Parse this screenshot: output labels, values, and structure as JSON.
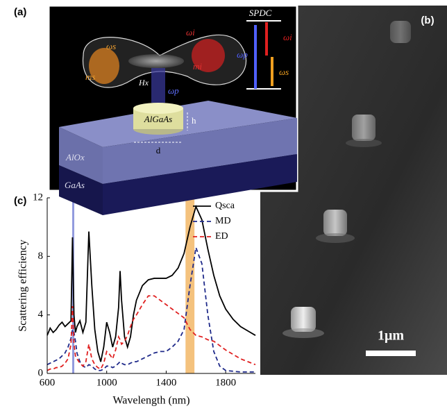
{
  "panels": {
    "a": {
      "label": "(a)",
      "process": "SPDC",
      "omega_s": "ωs",
      "omega_i": "ωi",
      "omega_p": "ωp",
      "m_s": "ms",
      "m_i": "mi",
      "field": "Hx",
      "pillar": "AlGaAs",
      "height": "h",
      "diameter": "d",
      "layer_top": "AlOx",
      "layer_bottom": "GaAs",
      "level_p": "ωp",
      "level_i": "ωi",
      "level_s": "ωs"
    },
    "b": {
      "label": "(b)",
      "scale_bar": "1μm"
    }
  },
  "chart_data": {
    "type": "line",
    "panel_label": "(c)",
    "xlabel": "Wavelength (nm)",
    "ylabel": "Scattering efficiency",
    "x": [
      600,
      620,
      640,
      660,
      680,
      700,
      720,
      740,
      760,
      770,
      780,
      790,
      800,
      820,
      840,
      860,
      880,
      900,
      920,
      940,
      960,
      980,
      1000,
      1020,
      1040,
      1060,
      1080,
      1090,
      1100,
      1120,
      1140,
      1160,
      1180,
      1200,
      1240,
      1280,
      1320,
      1360,
      1400,
      1440,
      1480,
      1520,
      1560,
      1600,
      1640,
      1680,
      1720,
      1760,
      1800,
      1850,
      1900,
      1950,
      2000
    ],
    "series": [
      {
        "name": "Qsca",
        "color": "#000000",
        "dash": "solid",
        "values": [
          2.6,
          3.1,
          2.8,
          3.0,
          3.3,
          3.5,
          3.2,
          3.4,
          3.6,
          9.3,
          4.0,
          2.8,
          3.2,
          3.6,
          2.8,
          3.5,
          9.7,
          6.0,
          3.0,
          1.5,
          0.8,
          1.8,
          3.5,
          2.8,
          1.8,
          2.5,
          4.5,
          7.0,
          5.0,
          2.5,
          1.8,
          2.5,
          4.0,
          5.0,
          6.0,
          6.4,
          6.5,
          6.5,
          6.5,
          6.7,
          7.2,
          8.2,
          10.0,
          11.4,
          10.5,
          8.5,
          6.7,
          5.3,
          4.4,
          3.7,
          3.2,
          2.9,
          2.6
        ]
      },
      {
        "name": "MD",
        "color": "#1f2a8a",
        "dash": "dashed",
        "values": [
          0.6,
          0.7,
          0.8,
          0.9,
          1.0,
          1.2,
          1.4,
          1.8,
          2.4,
          3.0,
          2.8,
          2.2,
          1.4,
          0.8,
          0.5,
          0.4,
          0.6,
          0.5,
          0.3,
          0.2,
          0.2,
          0.3,
          0.5,
          0.5,
          0.4,
          0.5,
          0.7,
          0.8,
          0.7,
          0.6,
          0.6,
          0.7,
          0.8,
          0.8,
          1.0,
          1.2,
          1.4,
          1.5,
          1.5,
          1.8,
          2.2,
          3.0,
          6.0,
          8.6,
          7.5,
          4.0,
          1.5,
          0.5,
          0.2,
          0.15,
          0.1,
          0.1,
          0.1
        ]
      },
      {
        "name": "ED",
        "color": "#e02020",
        "dash": "dashed",
        "values": [
          0.2,
          0.3,
          0.3,
          0.4,
          0.4,
          0.5,
          0.7,
          1.0,
          2.0,
          4.6,
          2.0,
          1.2,
          1.0,
          0.7,
          0.5,
          0.8,
          2.0,
          1.0,
          0.6,
          0.4,
          0.3,
          0.7,
          1.5,
          1.3,
          1.0,
          1.6,
          2.5,
          2.3,
          2.0,
          2.2,
          2.6,
          3.2,
          3.7,
          4.0,
          4.7,
          5.3,
          5.3,
          5.0,
          4.7,
          4.4,
          4.1,
          3.8,
          3.0,
          2.6,
          2.5,
          2.3,
          2.2,
          1.9,
          1.6,
          1.3,
          1.0,
          0.8,
          0.6
        ]
      }
    ],
    "bands": [
      {
        "range": [
          768,
          782
        ],
        "color": "#7f8ad8"
      },
      {
        "range": [
          1530,
          1590
        ],
        "color": "#f2b766"
      }
    ],
    "xlim": [
      600,
      2000
    ],
    "ylim": [
      0,
      12
    ],
    "xticks": [
      600,
      1000,
      1400,
      1800
    ],
    "yticks": [
      0,
      4,
      8,
      12
    ],
    "legend": "upper right"
  }
}
